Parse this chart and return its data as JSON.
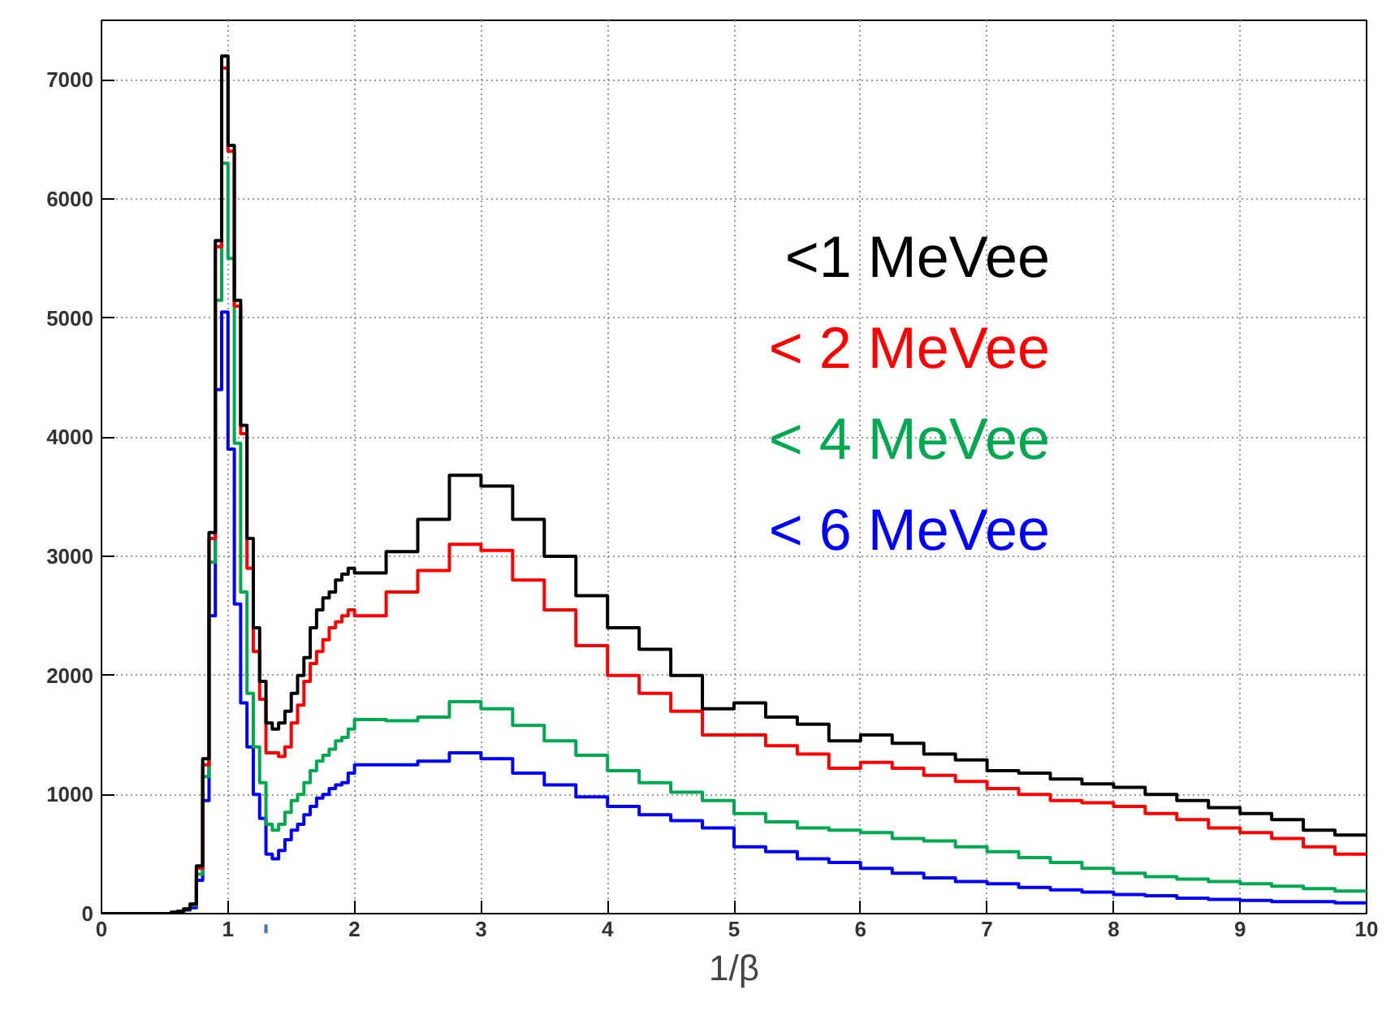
{
  "chart_data": {
    "type": "histogram",
    "xlabel": "1/β",
    "bins": [
      0,
      0.5,
      0.55,
      0.6,
      0.65,
      0.7,
      0.75,
      0.8,
      0.85,
      0.9,
      0.95,
      1.0,
      1.05,
      1.1,
      1.15,
      1.2,
      1.25,
      1.3,
      1.35,
      1.4,
      1.45,
      1.5,
      1.55,
      1.6,
      1.65,
      1.7,
      1.75,
      1.8,
      1.85,
      1.9,
      1.95,
      2.0,
      2.25,
      2.5,
      2.75,
      3.0,
      3.25,
      3.5,
      3.75,
      4.0,
      4.25,
      4.5,
      4.75,
      5.0,
      5.25,
      5.5,
      5.75,
      6.0,
      6.25,
      6.5,
      6.75,
      7.0,
      7.25,
      7.5,
      7.75,
      8.0,
      8.25,
      8.5,
      8.75,
      9.0,
      9.25,
      9.5,
      9.75,
      10
    ],
    "series": [
      {
        "name": "<1 MeVee",
        "color": "#000000",
        "values": [
          0,
          0,
          10,
          20,
          40,
          80,
          400,
          1300,
          3200,
          5650,
          7200,
          6450,
          5150,
          4100,
          3150,
          2400,
          1950,
          1600,
          1550,
          1600,
          1700,
          1850,
          2000,
          2150,
          2400,
          2550,
          2650,
          2700,
          2800,
          2850,
          2900,
          2860,
          3040,
          3310,
          3680,
          3590,
          3310,
          3000,
          2670,
          2400,
          2220,
          2000,
          1720,
          1770,
          1650,
          1590,
          1450,
          1500,
          1430,
          1340,
          1290,
          1200,
          1180,
          1130,
          1090,
          1060,
          1000,
          950,
          890,
          840,
          790,
          700,
          660
        ]
      },
      {
        "name": "< 2 MeVee",
        "color": "#ff0000",
        "values": [
          0,
          0,
          10,
          20,
          40,
          80,
          380,
          1250,
          3150,
          5600,
          7100,
          6400,
          5100,
          4030,
          2900,
          2200,
          1800,
          1350,
          1350,
          1320,
          1400,
          1600,
          1750,
          1950,
          2100,
          2200,
          2300,
          2400,
          2450,
          2500,
          2550,
          2500,
          2700,
          2880,
          3100,
          3050,
          2800,
          2550,
          2250,
          2000,
          1850,
          1700,
          1500,
          1500,
          1410,
          1340,
          1220,
          1270,
          1220,
          1160,
          1110,
          1050,
          1000,
          950,
          930,
          900,
          840,
          790,
          720,
          680,
          630,
          560,
          500
        ]
      },
      {
        "name": "< 4 MeVee",
        "color": "#00a84f",
        "values": [
          0,
          0,
          10,
          20,
          40,
          70,
          330,
          1150,
          2950,
          5150,
          6300,
          5500,
          3950,
          2700,
          1850,
          1400,
          1100,
          750,
          700,
          750,
          850,
          950,
          1000,
          1100,
          1200,
          1280,
          1330,
          1380,
          1450,
          1480,
          1550,
          1630,
          1620,
          1650,
          1780,
          1720,
          1580,
          1450,
          1330,
          1200,
          1100,
          1020,
          950,
          840,
          770,
          720,
          700,
          680,
          630,
          610,
          560,
          520,
          470,
          430,
          380,
          340,
          310,
          290,
          270,
          250,
          230,
          210,
          190
        ]
      },
      {
        "name": "< 6 MeVee",
        "color": "#0000ff",
        "values": [
          0,
          0,
          10,
          10,
          30,
          50,
          280,
          950,
          2500,
          4400,
          5050,
          3900,
          2600,
          1770,
          1400,
          1000,
          800,
          500,
          460,
          530,
          620,
          700,
          750,
          830,
          900,
          970,
          1000,
          1050,
          1080,
          1100,
          1180,
          1250,
          1250,
          1280,
          1350,
          1300,
          1180,
          1080,
          980,
          900,
          830,
          780,
          720,
          560,
          520,
          460,
          430,
          380,
          340,
          300,
          270,
          250,
          220,
          200,
          180,
          160,
          150,
          130,
          120,
          110,
          100,
          100,
          90
        ]
      }
    ],
    "xlim": [
      0,
      10
    ],
    "ylim": [
      0,
      7500
    ],
    "xticks": [
      0,
      1,
      2,
      3,
      4,
      5,
      6,
      7,
      8,
      9,
      10
    ],
    "yticks": [
      0,
      1000,
      2000,
      3000,
      4000,
      5000,
      6000,
      7000
    ],
    "grid": true,
    "legend": "top right"
  }
}
